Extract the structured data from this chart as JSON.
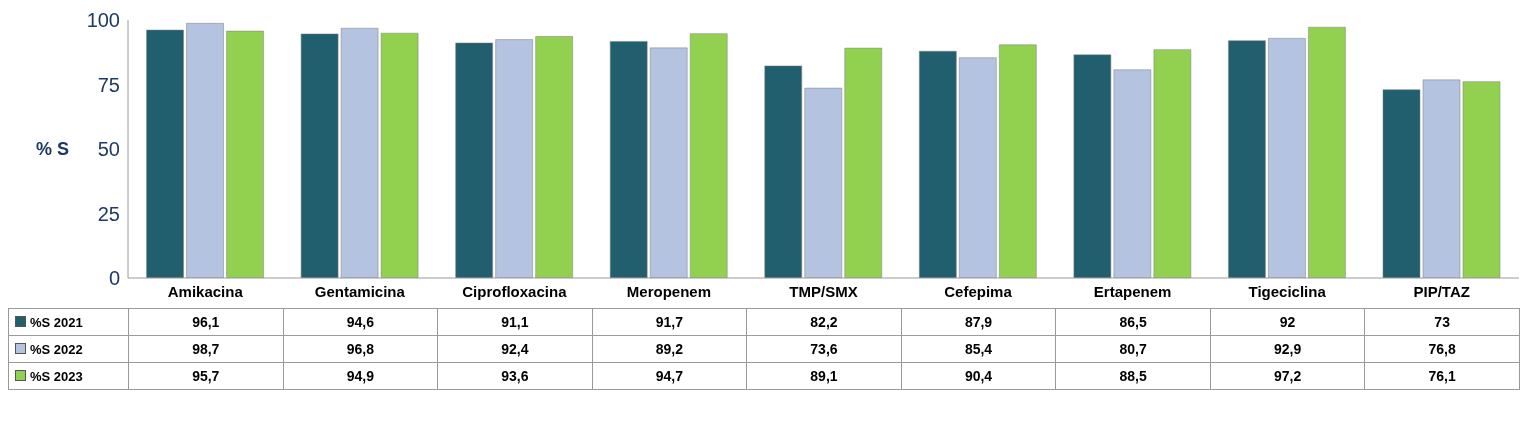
{
  "chart_data": {
    "type": "bar",
    "ylabel": "% S",
    "categories": [
      "Amikacina",
      "Gentamicina",
      "Ciprofloxacina",
      "Meropenem",
      "TMP/SMX",
      "Cefepima",
      "Ertapenem",
      "Tigeciclina",
      "PIP/TAZ"
    ],
    "series": [
      {
        "name": "%S 2021",
        "color": "#215f6e",
        "values": [
          96.1,
          94.6,
          91.1,
          91.7,
          82.2,
          87.9,
          86.5,
          92,
          73
        ],
        "value_labels": [
          "96,1",
          "94,6",
          "91,1",
          "91,7",
          "82,2",
          "87,9",
          "86,5",
          "92",
          "73"
        ]
      },
      {
        "name": "%S 2022",
        "color": "#b4c3e0",
        "values": [
          98.7,
          96.8,
          92.4,
          89.2,
          73.6,
          85.4,
          80.7,
          92.9,
          76.8
        ],
        "value_labels": [
          "98,7",
          "96,8",
          "92,4",
          "89,2",
          "73,6",
          "85,4",
          "80,7",
          "92,9",
          "76,8"
        ]
      },
      {
        "name": "%S 2023",
        "color": "#92d050",
        "values": [
          95.7,
          94.9,
          93.6,
          94.7,
          89.1,
          90.4,
          88.5,
          97.2,
          76.1
        ],
        "value_labels": [
          "95,7",
          "94,9",
          "93,6",
          "94,7",
          "89,1",
          "90,4",
          "88,5",
          "97,2",
          "76,1"
        ]
      }
    ],
    "ylim": [
      0,
      100
    ],
    "yticks": [
      0,
      25,
      50,
      75,
      100
    ],
    "grid": false,
    "legend": "bottom"
  }
}
